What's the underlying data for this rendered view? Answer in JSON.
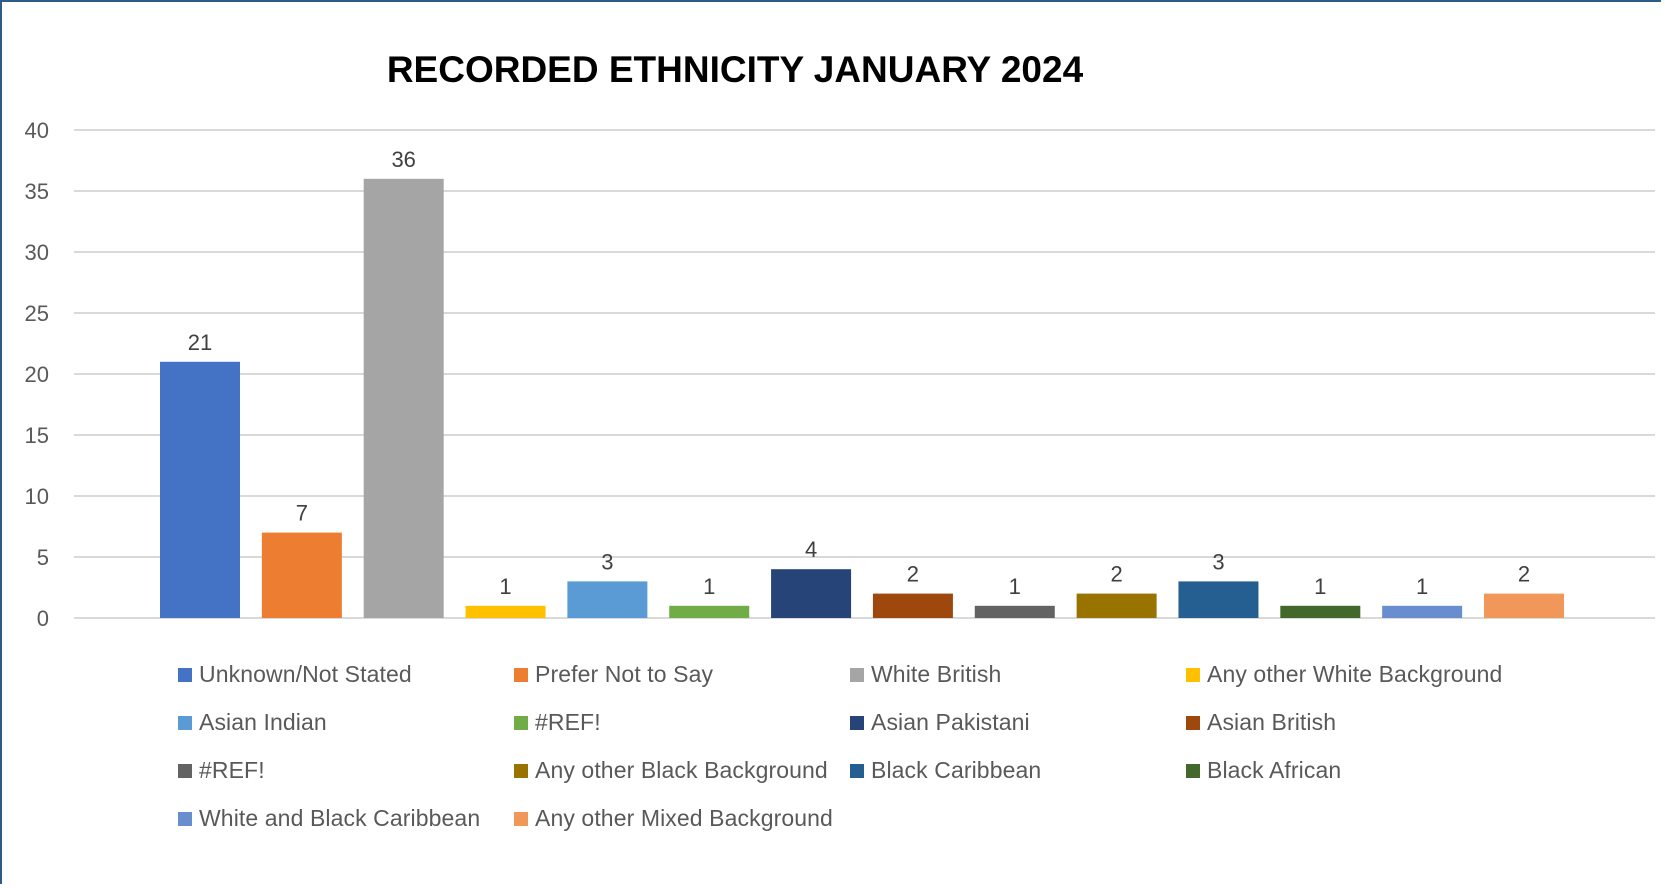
{
  "chart_data": {
    "type": "bar",
    "title": "RECORDED ETHNICITY JANUARY 2024",
    "xlabel": "",
    "ylabel": "",
    "ylim": [
      0,
      40
    ],
    "yticks": [
      0,
      5,
      10,
      15,
      20,
      25,
      30,
      35,
      40
    ],
    "grid": true,
    "legend_position": "bottom",
    "categories": [
      "Unknown/Not Stated",
      "Prefer Not to Say",
      "White British",
      "Any other White Background",
      "Asian Indian",
      "#REF!",
      "Asian Pakistani",
      "Asian British",
      "#REF!",
      "Any other Black Background",
      "Black Caribbean",
      "Black African",
      "White and Black Caribbean",
      "Any other Mixed Background"
    ],
    "values": [
      21,
      7,
      36,
      1,
      3,
      1,
      4,
      2,
      1,
      2,
      3,
      1,
      1,
      2
    ],
    "colors": [
      "#4472C4",
      "#ED7D31",
      "#A5A5A5",
      "#FFC000",
      "#5B9BD5",
      "#70AD47",
      "#264478",
      "#9E480E",
      "#636363",
      "#997300",
      "#255E91",
      "#43682B",
      "#698ED0",
      "#F1975A"
    ]
  }
}
